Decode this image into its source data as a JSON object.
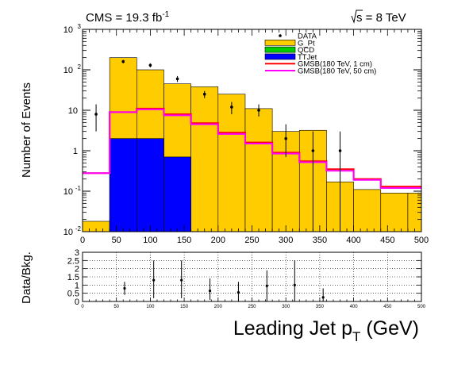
{
  "header": {
    "lumi_text": "CMS = 19.3 fb",
    "lumi_sup": "-1",
    "energy_text": "s = 8 TeV"
  },
  "chart_data": [
    {
      "type": "histogram",
      "ylabel": "Number of Events",
      "xlim": [
        0,
        500
      ],
      "ylim": [
        0.01,
        1000
      ],
      "yscale": "log",
      "legend_position": "top-right",
      "y_tick_labels": [
        {
          "value": 0.01,
          "base": "10",
          "exp": "-2"
        },
        {
          "value": 0.1,
          "base": "10",
          "exp": "-1"
        },
        {
          "value": 1,
          "base": "1",
          "exp": ""
        },
        {
          "value": 10,
          "base": "10",
          "exp": ""
        },
        {
          "value": 100,
          "base": "10",
          "exp": "2"
        },
        {
          "value": 1000,
          "base": "10",
          "exp": "3"
        }
      ],
      "x_tick_labels": [
        "0",
        "50",
        "100",
        "150",
        "200",
        "250",
        "300",
        "350",
        "400",
        "450",
        "500"
      ],
      "bin_edges": [
        0,
        40,
        80,
        120,
        160,
        200,
        240,
        280,
        320,
        360,
        400,
        440,
        480,
        500
      ],
      "stacks": [
        {
          "name": "G_Pt",
          "color": "#ffcc00",
          "values": [
            0.018,
            200,
            100,
            45,
            38,
            25,
            11,
            3,
            3.2,
            0.17,
            0.11,
            0.09,
            0.09
          ]
        },
        {
          "name": "TTJet",
          "color": "#0000ff",
          "values": [
            0,
            2,
            2,
            0.7,
            0,
            0,
            0,
            0,
            0,
            0,
            0,
            0,
            0
          ]
        }
      ],
      "signals": [
        {
          "name": "GMSB(180 TeV, 1 cm)",
          "color": "#ff0000",
          "values": [
            0.28,
            9,
            11,
            8,
            4.8,
            2.8,
            1.6,
            0.9,
            0.55,
            0.35,
            0.2,
            0.13,
            0.13
          ]
        },
        {
          "name": "GMSB(180 TeV, 50 cm)",
          "color": "#ff00ff",
          "values": [
            0.28,
            9,
            10.5,
            7.5,
            4.5,
            2.6,
            1.5,
            0.85,
            0.52,
            0.32,
            0.19,
            0.12,
            0.12
          ]
        }
      ],
      "data": {
        "name": "DATA",
        "points": [
          {
            "x": 20,
            "y": 8,
            "ylo": 3,
            "yhi": 14
          },
          {
            "x": 60,
            "y": 160,
            "ylo": 145,
            "yhi": 175
          },
          {
            "x": 100,
            "y": 130,
            "ylo": 115,
            "yhi": 145
          },
          {
            "x": 140,
            "y": 60,
            "ylo": 50,
            "yhi": 70
          },
          {
            "x": 180,
            "y": 25,
            "ylo": 20,
            "yhi": 30
          },
          {
            "x": 220,
            "y": 12,
            "ylo": 8,
            "yhi": 16
          },
          {
            "x": 260,
            "y": 10,
            "ylo": 7,
            "yhi": 14
          },
          {
            "x": 300,
            "y": 2,
            "ylo": 0.7,
            "yhi": 4.5
          },
          {
            "x": 340,
            "y": 1,
            "ylo": 0.01,
            "yhi": 3
          },
          {
            "x": 380,
            "y": 1,
            "ylo": 0.01,
            "yhi": 3
          }
        ]
      },
      "legend": [
        {
          "label": "DATA",
          "kind": "marker",
          "color": "#000000"
        },
        {
          "label": "G_Pt",
          "kind": "fill",
          "color": "#ffcc00"
        },
        {
          "label": "QCD",
          "kind": "fill",
          "color": "#00cc00"
        },
        {
          "label": "TTJet",
          "kind": "fill",
          "color": "#0000ff"
        },
        {
          "label": "GMSB(180 TeV, 1 cm)",
          "kind": "line",
          "color": "#ff0000"
        },
        {
          "label": "GMSB(180 TeV, 50 cm)",
          "kind": "line",
          "color": "#ff00ff"
        }
      ]
    },
    {
      "type": "scatter",
      "ylabel": "Data/Bkg.",
      "xlabel": "Leading Jet p",
      "xlabel_sub": "T",
      "xlabel_unit": " (GeV)",
      "xlim": [
        0,
        500
      ],
      "ylim": [
        0,
        3
      ],
      "grid": true,
      "y_tick_labels": [
        "0",
        "0.5",
        "1",
        "1.5",
        "2",
        "2.5",
        "3"
      ],
      "x_tick_labels": [
        "0",
        "50",
        "100",
        "150",
        "200",
        "250",
        "300",
        "350",
        "400",
        "450",
        "500"
      ],
      "points": [
        {
          "x": 62,
          "y": 0.8,
          "ylo": 0.4,
          "yhi": 1.2
        },
        {
          "x": 105,
          "y": 1.3,
          "ylo": 0.2,
          "yhi": 2.5
        },
        {
          "x": 146,
          "y": 1.3,
          "ylo": 0.2,
          "yhi": 2.5
        },
        {
          "x": 188,
          "y": 0.65,
          "ylo": 0.1,
          "yhi": 1.4
        },
        {
          "x": 230,
          "y": 0.55,
          "ylo": 0.0,
          "yhi": 1.2
        },
        {
          "x": 272,
          "y": 0.95,
          "ylo": 0.0,
          "yhi": 1.9
        },
        {
          "x": 313,
          "y": 1.0,
          "ylo": 0.0,
          "yhi": 2.5
        },
        {
          "x": 355,
          "y": 0.25,
          "ylo": 0.0,
          "yhi": 0.8
        }
      ]
    }
  ]
}
